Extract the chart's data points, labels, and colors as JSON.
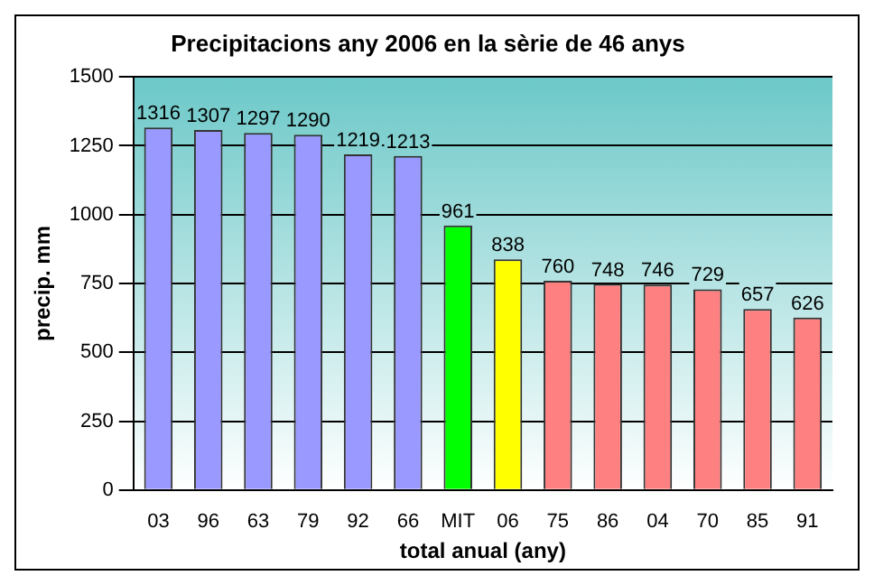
{
  "chart_data": {
    "type": "bar",
    "title": "Precipitacions any 2006 en la sèrie de 46 anys",
    "xlabel": "total anual (any)",
    "ylabel": "precip. mm",
    "categories": [
      "03",
      "96",
      "63",
      "79",
      "92",
      "66",
      "MIT",
      "06",
      "75",
      "86",
      "04",
      "70",
      "85",
      "91"
    ],
    "values": [
      1316,
      1307,
      1297,
      1290,
      1219,
      1213,
      961,
      838,
      760,
      748,
      746,
      729,
      657,
      626
    ],
    "colors": [
      "#9999ff",
      "#9999ff",
      "#9999ff",
      "#9999ff",
      "#9999ff",
      "#9999ff",
      "#00ff00",
      "#ffff00",
      "#ff8080",
      "#ff8080",
      "#ff8080",
      "#ff8080",
      "#ff8080",
      "#ff8080"
    ],
    "ylim": [
      0,
      1500
    ],
    "yticks": [
      0,
      250,
      500,
      750,
      1000,
      1250,
      1500
    ],
    "grid": "y",
    "data_labels": true,
    "legend": false
  }
}
